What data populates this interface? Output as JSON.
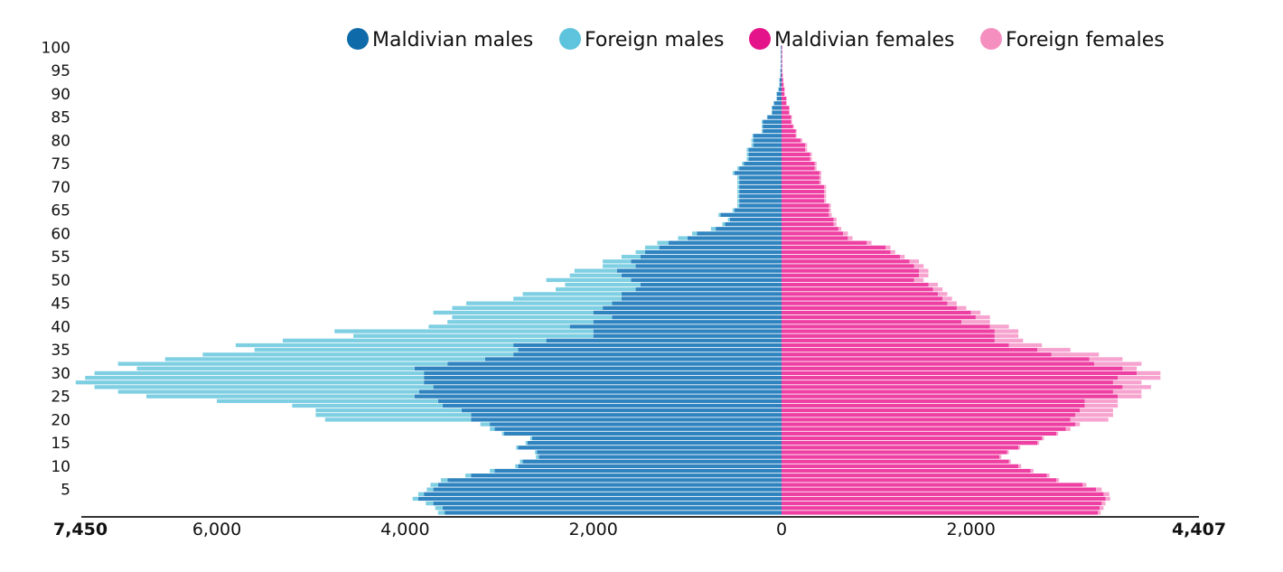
{
  "chart_data": {
    "type": "bar",
    "orientation": "horizontal-population-pyramid",
    "stacked": true,
    "colors": {
      "maldivian_males": "#2f84c0",
      "foreign_males": "#7fcfe3",
      "maldivian_females": "#ee3fa2",
      "foreign_females": "#f7a3cf"
    },
    "legend": {
      "placement": "top",
      "entries": [
        {
          "key": "maldivian_males",
          "label": "Maldivian males",
          "color": "#0e6aa8"
        },
        {
          "key": "foreign_males",
          "label": "Foreign males",
          "color": "#5ec3dc"
        },
        {
          "key": "maldivian_females",
          "label": "Maldivian females",
          "color": "#e5138a"
        },
        {
          "key": "foreign_females",
          "label": "Foreign females",
          "color": "#f48fc0"
        }
      ]
    },
    "age_ticks": [
      "100",
      "95",
      "90",
      "85",
      "80",
      "75",
      "70",
      "65",
      "60",
      "55",
      "50",
      "45",
      "40",
      "35",
      "30",
      "25",
      "20",
      "15",
      "10",
      "5"
    ],
    "x_axis": {
      "male_max": 7450,
      "female_max": 4407,
      "tick_labels": [
        {
          "value": -7450,
          "label": "7,450",
          "bold": true
        },
        {
          "value": -6000,
          "label": "6,000",
          "bold": false
        },
        {
          "value": -4000,
          "label": "4,000",
          "bold": false
        },
        {
          "value": -2000,
          "label": "2,000",
          "bold": false
        },
        {
          "value": 0,
          "label": "0",
          "bold": false
        },
        {
          "value": 2000,
          "label": "2,000",
          "bold": false
        },
        {
          "value": 4407,
          "label": "4,407",
          "bold": true
        }
      ]
    },
    "ages": [
      0,
      1,
      2,
      3,
      4,
      5,
      6,
      7,
      8,
      9,
      10,
      11,
      12,
      13,
      14,
      15,
      16,
      17,
      18,
      19,
      20,
      21,
      22,
      23,
      24,
      25,
      26,
      27,
      28,
      29,
      30,
      31,
      32,
      33,
      34,
      35,
      36,
      37,
      38,
      39,
      40,
      41,
      42,
      43,
      44,
      45,
      46,
      47,
      48,
      49,
      50,
      51,
      52,
      53,
      54,
      55,
      56,
      57,
      58,
      59,
      60,
      61,
      62,
      63,
      64,
      65,
      66,
      67,
      68,
      69,
      70,
      71,
      72,
      73,
      74,
      75,
      76,
      77,
      78,
      79,
      80,
      81,
      82,
      83,
      84,
      85,
      86,
      87,
      88,
      89,
      90,
      91,
      92,
      93,
      94,
      95,
      96,
      97,
      98,
      99,
      100
    ],
    "maldivian_males": [
      3580,
      3600,
      3700,
      3860,
      3800,
      3700,
      3650,
      3550,
      3300,
      3050,
      2800,
      2750,
      2580,
      2600,
      2800,
      2700,
      2650,
      2950,
      3050,
      3100,
      3300,
      3300,
      3400,
      3600,
      3650,
      3900,
      3850,
      3700,
      3800,
      3800,
      3800,
      3900,
      3550,
      3150,
      2850,
      2800,
      2850,
      2500,
      2000,
      2000,
      2250,
      2000,
      1800,
      2000,
      1900,
      1800,
      1700,
      1700,
      1550,
      1500,
      1600,
      1700,
      1750,
      1550,
      1600,
      1500,
      1450,
      1300,
      1200,
      1000,
      900,
      700,
      600,
      550,
      650,
      500,
      450,
      450,
      450,
      450,
      450,
      450,
      450,
      500,
      450,
      400,
      350,
      350,
      350,
      300,
      300,
      300,
      200,
      200,
      200,
      150,
      100,
      100,
      80,
      50,
      50,
      30,
      20,
      20,
      10,
      10,
      5,
      5,
      5,
      5,
      5
    ],
    "foreign_males": [
      70,
      80,
      80,
      60,
      60,
      70,
      80,
      70,
      60,
      50,
      30,
      30,
      30,
      20,
      20,
      20,
      20,
      20,
      50,
      100,
      1550,
      1650,
      1550,
      1600,
      2350,
      2850,
      3200,
      3600,
      3700,
      3600,
      3500,
      2950,
      3500,
      3400,
      3300,
      2800,
      2950,
      2800,
      2550,
      2750,
      1500,
      1550,
      1700,
      1700,
      1600,
      1550,
      1150,
      1050,
      850,
      800,
      900,
      550,
      450,
      350,
      300,
      200,
      100,
      150,
      120,
      100,
      50,
      50,
      30,
      20,
      20,
      20,
      20,
      20,
      20,
      20,
      20,
      20,
      20,
      20,
      20,
      20,
      20,
      20,
      20,
      20,
      20,
      10,
      10,
      10,
      10,
      5,
      5,
      5,
      5,
      5,
      5,
      5,
      5,
      5,
      5,
      5,
      5,
      5,
      5,
      5,
      5
    ],
    "maldivian_females": [
      3340,
      3360,
      3380,
      3420,
      3400,
      3320,
      3180,
      2900,
      2800,
      2630,
      2500,
      2400,
      2300,
      2380,
      2500,
      2700,
      2750,
      2900,
      3000,
      3100,
      3050,
      3100,
      3150,
      3200,
      3200,
      3550,
      3500,
      3600,
      3500,
      3550,
      3750,
      3600,
      3300,
      3250,
      2850,
      2700,
      2400,
      2250,
      2250,
      2250,
      2200,
      1900,
      2050,
      2000,
      1850,
      1750,
      1700,
      1650,
      1600,
      1550,
      1400,
      1450,
      1450,
      1400,
      1350,
      1250,
      1150,
      1100,
      900,
      700,
      650,
      600,
      550,
      550,
      500,
      500,
      500,
      450,
      450,
      450,
      450,
      400,
      400,
      400,
      350,
      350,
      300,
      300,
      250,
      250,
      200,
      150,
      150,
      120,
      100,
      100,
      80,
      80,
      50,
      50,
      30,
      30,
      20,
      15,
      10,
      5,
      5,
      5,
      5,
      5,
      5
    ],
    "foreign_females": [
      30,
      40,
      40,
      50,
      60,
      60,
      40,
      30,
      30,
      30,
      30,
      20,
      20,
      20,
      20,
      20,
      20,
      20,
      50,
      50,
      400,
      400,
      350,
      350,
      350,
      250,
      300,
      300,
      300,
      450,
      250,
      150,
      500,
      350,
      500,
      350,
      350,
      300,
      250,
      250,
      200,
      300,
      150,
      100,
      100,
      100,
      100,
      100,
      100,
      100,
      100,
      100,
      100,
      100,
      100,
      50,
      50,
      50,
      50,
      50,
      50,
      30,
      30,
      30,
      30,
      20,
      20,
      20,
      20,
      20,
      20,
      20,
      20,
      20,
      20,
      20,
      20,
      20,
      20,
      20,
      20,
      10,
      10,
      10,
      10,
      10,
      5,
      5,
      5,
      5,
      5,
      5,
      5,
      5,
      5,
      5,
      5,
      5,
      5,
      5,
      5
    ]
  }
}
